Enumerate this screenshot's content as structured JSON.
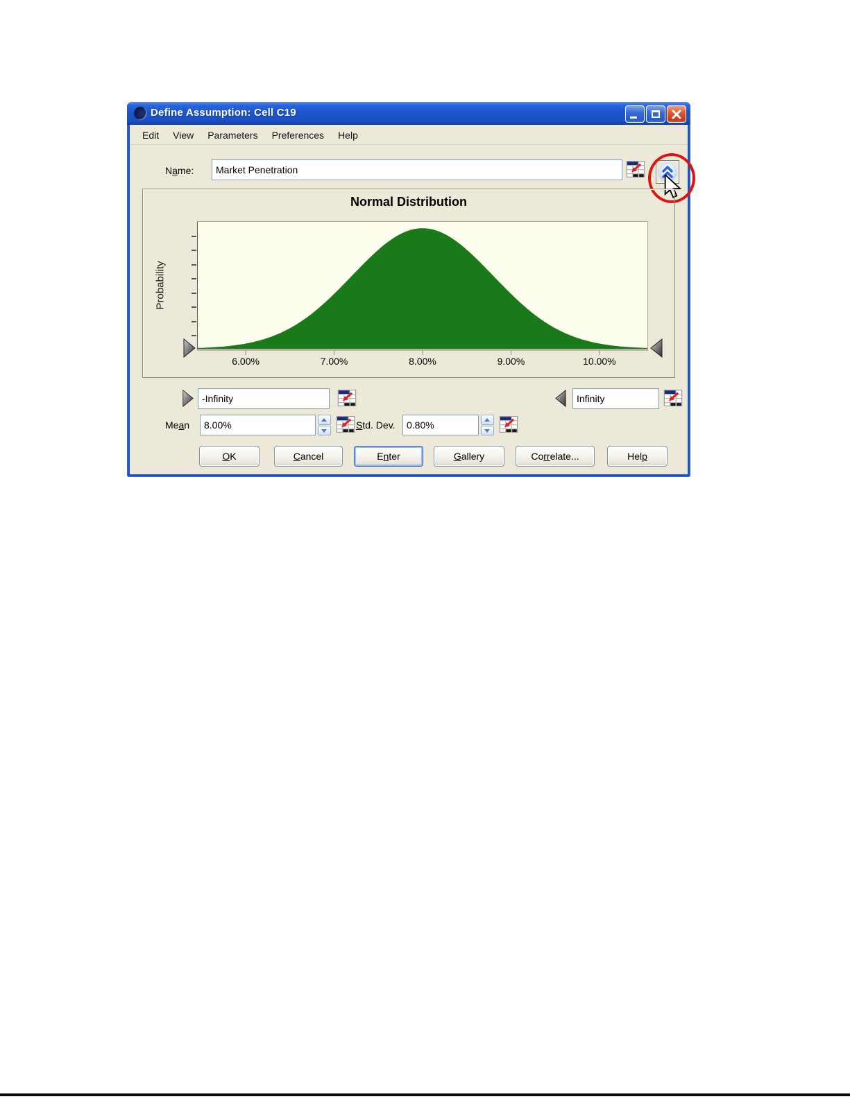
{
  "window": {
    "title": "Define Assumption: Cell C19"
  },
  "menu": {
    "items": [
      "Edit",
      "View",
      "Parameters",
      "Preferences",
      "Help"
    ]
  },
  "name_row": {
    "label": {
      "pre": "N",
      "mn": "a",
      "post": "me:"
    },
    "value": "Market Penetration"
  },
  "truncation": {
    "left": "-Infinity",
    "right": "Infinity"
  },
  "params": {
    "mean": {
      "label": {
        "pre": "Me",
        "mn": "a",
        "post": "n"
      },
      "value": "8.00%"
    },
    "std_dev": {
      "label": {
        "pre": "",
        "mn": "S",
        "post": "td. Dev."
      },
      "value": "0.80%"
    }
  },
  "buttons": {
    "ok": {
      "pre": "",
      "mn": "O",
      "post": "K"
    },
    "cancel": {
      "pre": "",
      "mn": "C",
      "post": "ancel"
    },
    "enter": {
      "pre": "E",
      "mn": "n",
      "post": "ter"
    },
    "gallery": {
      "pre": "",
      "mn": "G",
      "post": "allery"
    },
    "correlate": {
      "pre": "Co",
      "mn": "rr",
      "post": "elate..."
    },
    "help": {
      "pre": "Hel",
      "mn": "p",
      "post": ""
    }
  },
  "chart_data": {
    "type": "area",
    "title": "Normal Distribution",
    "ylabel": "Probability",
    "xlabel": "",
    "distribution": "normal",
    "mean": 8.0,
    "std_dev": 0.8,
    "units": "percent",
    "x_min": 5.45,
    "x_max": 10.55,
    "x_tick_values": [
      6,
      7,
      8,
      9,
      10
    ],
    "x_tick_labels": [
      "6.00%",
      "7.00%",
      "8.00%",
      "9.00%",
      "10.00%"
    ],
    "y_tick_count": 8,
    "peak_fraction": 0.95,
    "curve_color": "#1a7a1a",
    "plot_bg": "#fdfdee",
    "grid": false,
    "legend": false
  },
  "annotation": {
    "shape": "ellipse",
    "color": "#dd1410"
  },
  "colors": {
    "titlebar": "#1c55cd",
    "dialog_bg": "#ece9d8",
    "curve_green": "#1a7a1a",
    "plot_bg": "#fdfdee",
    "annotation_red": "#dd1410",
    "field_border": "#7f9db9"
  }
}
